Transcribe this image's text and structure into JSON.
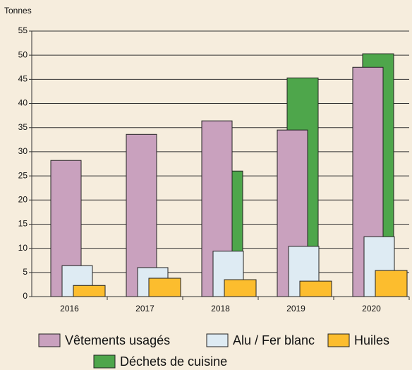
{
  "chart_data": {
    "type": "bar",
    "y_axis_label": "Tonnes",
    "categories": [
      "2016",
      "2017",
      "2018",
      "2019",
      "2020"
    ],
    "series": [
      {
        "name": "Vêtements usagés",
        "color": "#c9a1be",
        "values": [
          28.2,
          33.6,
          36.4,
          34.5,
          47.5
        ]
      },
      {
        "name": "Alu / Fer blanc",
        "color": "#deebf3",
        "values": [
          6.4,
          6.0,
          9.4,
          10.4,
          12.4
        ]
      },
      {
        "name": "Huiles",
        "color": "#fcbd2e",
        "values": [
          2.3,
          3.8,
          3.5,
          3.2,
          5.4
        ]
      },
      {
        "name": "Déchets de cuisine",
        "color": "#4ea64b",
        "values": [
          null,
          null,
          26.0,
          45.3,
          50.3
        ]
      }
    ],
    "ylim": [
      0,
      55
    ],
    "yticks": [
      0,
      5,
      10,
      15,
      20,
      25,
      30,
      35,
      40,
      45,
      50,
      55
    ],
    "grid": true
  }
}
